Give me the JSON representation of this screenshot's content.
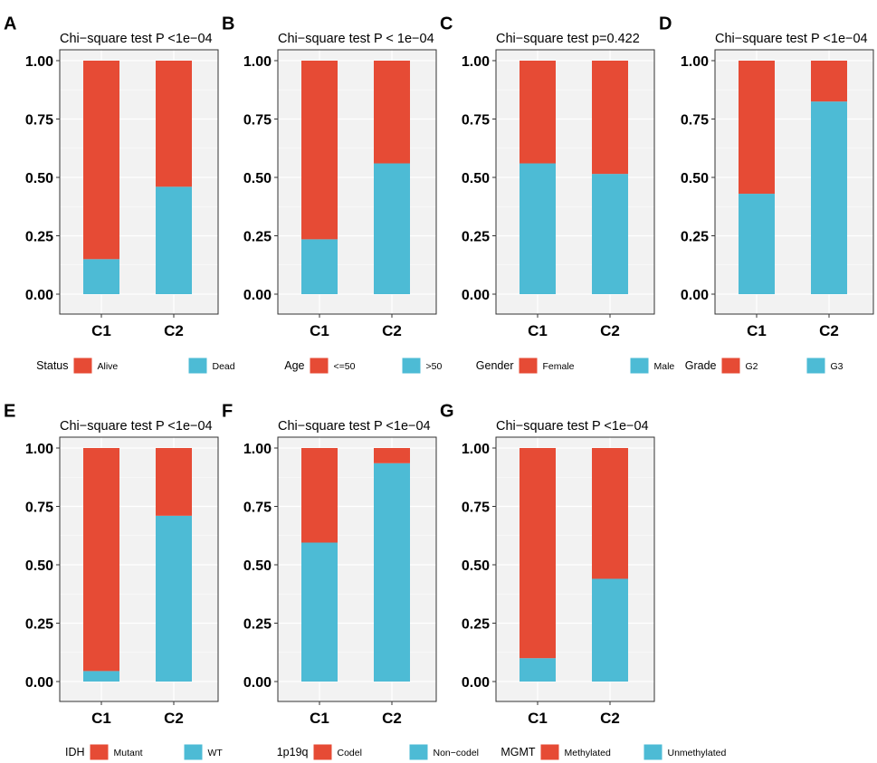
{
  "colors": {
    "top": "#E64B35",
    "bottom": "#4DBBD5",
    "panel_bg": "#F2F2F2",
    "grid": "#FFFFFF",
    "border": "#333333",
    "text": "#000000"
  },
  "chart_data": [
    {
      "letter": "A",
      "type": "bar",
      "stacked": true,
      "title": "Chi−square test P  <1e−04",
      "categories": [
        "C1",
        "C2"
      ],
      "yticks": [
        "0.00",
        "0.25",
        "0.50",
        "0.75",
        "1.00"
      ],
      "ylim": [
        0,
        1
      ],
      "legend_title": "Status",
      "series": [
        {
          "name": "Alive",
          "values": [
            0.85,
            0.54
          ]
        },
        {
          "name": "Dead",
          "values": [
            0.15,
            0.46
          ]
        }
      ]
    },
    {
      "letter": "B",
      "type": "bar",
      "stacked": true,
      "title": "Chi−square test P < 1e−04",
      "categories": [
        "C1",
        "C2"
      ],
      "yticks": [
        "0.00",
        "0.25",
        "0.50",
        "0.75",
        "1.00"
      ],
      "ylim": [
        0,
        1
      ],
      "legend_title": "Age",
      "series": [
        {
          "name": "<=50",
          "values": [
            0.765,
            0.44
          ]
        },
        {
          "name": ">50",
          "values": [
            0.235,
            0.56
          ]
        }
      ]
    },
    {
      "letter": "C",
      "type": "bar",
      "stacked": true,
      "title": "Chi−square test p=0.422",
      "categories": [
        "C1",
        "C2"
      ],
      "yticks": [
        "0.00",
        "0.25",
        "0.50",
        "0.75",
        "1.00"
      ],
      "ylim": [
        0,
        1
      ],
      "legend_title": "Gender",
      "series": [
        {
          "name": "Female",
          "values": [
            0.44,
            0.485
          ]
        },
        {
          "name": "Male",
          "values": [
            0.56,
            0.515
          ]
        }
      ]
    },
    {
      "letter": "D",
      "type": "bar",
      "stacked": true,
      "title": "Chi−square test P  <1e−04",
      "categories": [
        "C1",
        "C2"
      ],
      "yticks": [
        "0.00",
        "0.25",
        "0.50",
        "0.75",
        "1.00"
      ],
      "ylim": [
        0,
        1
      ],
      "legend_title": "Grade",
      "series": [
        {
          "name": "G2",
          "values": [
            0.57,
            0.175
          ]
        },
        {
          "name": "G3",
          "values": [
            0.43,
            0.825
          ]
        }
      ]
    },
    {
      "letter": "E",
      "type": "bar",
      "stacked": true,
      "title": "Chi−square test P  <1e−04",
      "categories": [
        "C1",
        "C2"
      ],
      "yticks": [
        "0.00",
        "0.25",
        "0.50",
        "0.75",
        "1.00"
      ],
      "ylim": [
        0,
        1
      ],
      "legend_title": "IDH",
      "series": [
        {
          "name": "Mutant",
          "values": [
            0.955,
            0.29
          ]
        },
        {
          "name": "WT",
          "values": [
            0.045,
            0.71
          ]
        }
      ]
    },
    {
      "letter": "F",
      "type": "bar",
      "stacked": true,
      "title": "Chi−square test P  <1e−04",
      "categories": [
        "C1",
        "C2"
      ],
      "yticks": [
        "0.00",
        "0.25",
        "0.50",
        "0.75",
        "1.00"
      ],
      "ylim": [
        0,
        1
      ],
      "legend_title": "1p19q",
      "series": [
        {
          "name": "Codel",
          "values": [
            0.405,
            0.065
          ]
        },
        {
          "name": "Non−codel",
          "values": [
            0.595,
            0.935
          ]
        }
      ]
    },
    {
      "letter": "G",
      "type": "bar",
      "stacked": true,
      "title": "Chi−square test P  <1e−04",
      "categories": [
        "C1",
        "C2"
      ],
      "yticks": [
        "0.00",
        "0.25",
        "0.50",
        "0.75",
        "1.00"
      ],
      "ylim": [
        0,
        1
      ],
      "legend_title": "MGMT",
      "series": [
        {
          "name": "Methylated",
          "values": [
            0.9,
            0.56
          ]
        },
        {
          "name": "Unmethylated",
          "values": [
            0.1,
            0.44
          ]
        }
      ]
    }
  ]
}
